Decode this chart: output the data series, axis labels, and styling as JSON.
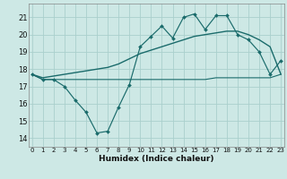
{
  "x_ticks": [
    0,
    1,
    2,
    3,
    4,
    5,
    6,
    7,
    8,
    9,
    10,
    11,
    12,
    13,
    14,
    15,
    16,
    17,
    18,
    19,
    20,
    21,
    22,
    23
  ],
  "xlabel": "Humidex (Indice chaleur)",
  "ylim": [
    13.5,
    21.8
  ],
  "xlim": [
    -0.3,
    23.3
  ],
  "yticks": [
    14,
    15,
    16,
    17,
    18,
    19,
    20,
    21
  ],
  "bg_color": "#cde8e5",
  "grid_color": "#aacfcc",
  "line_color": "#1a6b6b",
  "line1_x": [
    0,
    1,
    2,
    3,
    4,
    5,
    6,
    7,
    8,
    9,
    10,
    11,
    12,
    13,
    14,
    15,
    16,
    17,
    18,
    19,
    20,
    21,
    22,
    23
  ],
  "line1_y": [
    17.7,
    17.4,
    17.4,
    17.0,
    16.2,
    15.5,
    14.3,
    14.4,
    15.8,
    17.1,
    19.3,
    19.9,
    20.5,
    19.8,
    21.0,
    21.2,
    20.3,
    21.1,
    21.1,
    20.0,
    19.7,
    19.0,
    17.7,
    18.5
  ],
  "line2_x": [
    0,
    1,
    2,
    3,
    4,
    5,
    6,
    7,
    8,
    9,
    10,
    11,
    12,
    13,
    14,
    15,
    16,
    17,
    18,
    19,
    20,
    21,
    22,
    23
  ],
  "line2_y": [
    17.7,
    17.5,
    17.6,
    17.7,
    17.8,
    17.9,
    18.0,
    18.1,
    18.3,
    18.6,
    18.9,
    19.1,
    19.3,
    19.5,
    19.7,
    19.9,
    20.0,
    20.1,
    20.2,
    20.2,
    20.0,
    19.7,
    19.3,
    17.7
  ],
  "line3_x": [
    0,
    1,
    2,
    3,
    4,
    5,
    6,
    7,
    8,
    9,
    10,
    11,
    12,
    13,
    14,
    15,
    16,
    17,
    18,
    19,
    20,
    21,
    22,
    23
  ],
  "line3_y": [
    17.7,
    17.4,
    17.4,
    17.4,
    17.4,
    17.4,
    17.4,
    17.4,
    17.4,
    17.4,
    17.4,
    17.4,
    17.4,
    17.4,
    17.4,
    17.4,
    17.4,
    17.5,
    17.5,
    17.5,
    17.5,
    17.5,
    17.5,
    17.7
  ]
}
